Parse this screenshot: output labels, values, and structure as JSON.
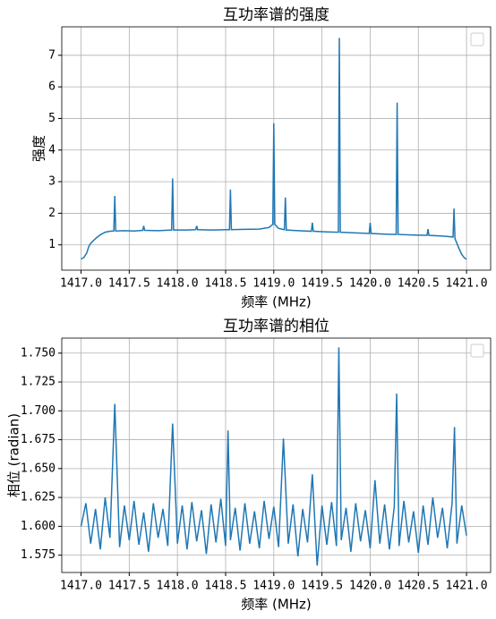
{
  "chart_data": [
    {
      "type": "line",
      "title": "互功率谱的强度",
      "xlabel": "频率 (MHz)",
      "ylabel": "强度",
      "x": [
        1417.0,
        1417.03,
        1417.06,
        1417.08,
        1417.1,
        1417.15,
        1417.2,
        1417.25,
        1417.3,
        1417.34,
        1417.35,
        1417.36,
        1417.45,
        1417.55,
        1417.64,
        1417.65,
        1417.66,
        1417.8,
        1417.94,
        1417.95,
        1417.96,
        1418.1,
        1418.19,
        1418.2,
        1418.21,
        1418.35,
        1418.54,
        1418.55,
        1418.56,
        1418.7,
        1418.85,
        1418.95,
        1418.99,
        1419.0,
        1419.01,
        1419.05,
        1419.11,
        1419.12,
        1419.13,
        1419.25,
        1419.39,
        1419.4,
        1419.41,
        1419.55,
        1419.67,
        1419.68,
        1419.69,
        1419.85,
        1419.99,
        1420.0,
        1420.01,
        1420.15,
        1420.27,
        1420.28,
        1420.29,
        1420.45,
        1420.59,
        1420.6,
        1420.61,
        1420.75,
        1420.86,
        1420.87,
        1420.88,
        1420.92,
        1420.95,
        1420.98,
        1421.0
      ],
      "series": [
        {
          "color": "#1f77b4",
          "values": [
            0.55,
            0.6,
            0.75,
            0.95,
            1.05,
            1.2,
            1.32,
            1.4,
            1.43,
            1.44,
            2.55,
            1.44,
            1.45,
            1.44,
            1.46,
            1.6,
            1.46,
            1.45,
            1.47,
            3.1,
            1.47,
            1.47,
            1.48,
            1.6,
            1.48,
            1.47,
            1.48,
            2.75,
            1.48,
            1.49,
            1.5,
            1.55,
            1.65,
            4.85,
            1.65,
            1.52,
            1.48,
            2.5,
            1.47,
            1.45,
            1.43,
            1.7,
            1.43,
            1.41,
            1.4,
            7.55,
            1.4,
            1.38,
            1.36,
            1.7,
            1.36,
            1.34,
            1.33,
            5.5,
            1.33,
            1.31,
            1.3,
            1.5,
            1.3,
            1.28,
            1.25,
            2.15,
            1.2,
            0.9,
            0.7,
            0.58,
            0.55
          ]
        }
      ],
      "xlim": [
        1416.8,
        1421.25
      ],
      "xticks": [
        {
          "value": 1417,
          "label": "1417.0"
        },
        {
          "value": 1417.5,
          "label": "1417.5"
        },
        {
          "value": 1418,
          "label": "1418.0"
        },
        {
          "value": 1418.5,
          "label": "1418.5"
        },
        {
          "value": 1419,
          "label": "1419.0"
        },
        {
          "value": 1419.5,
          "label": "1419.5"
        },
        {
          "value": 1420,
          "label": "1420.0"
        },
        {
          "value": 1420.5,
          "label": "1420.5"
        },
        {
          "value": 1421,
          "label": "1421.0"
        }
      ],
      "ylim": [
        0.2,
        7.9
      ],
      "yticks": [
        1,
        2,
        3,
        4,
        5,
        6,
        7
      ],
      "grid": true,
      "legend": "upper right"
    },
    {
      "type": "line",
      "title": "互功率谱的相位",
      "xlabel": "频率 (MHz)",
      "ylabel": "相位 (radian)",
      "x": [
        1417.0,
        1417.05,
        1417.1,
        1417.15,
        1417.2,
        1417.25,
        1417.3,
        1417.35,
        1417.4,
        1417.45,
        1417.5,
        1417.55,
        1417.6,
        1417.65,
        1417.7,
        1417.75,
        1417.8,
        1417.85,
        1417.9,
        1417.95,
        1418.0,
        1418.05,
        1418.1,
        1418.15,
        1418.2,
        1418.25,
        1418.3,
        1418.35,
        1418.4,
        1418.45,
        1418.5,
        1418.525,
        1418.55,
        1418.6,
        1418.65,
        1418.7,
        1418.75,
        1418.8,
        1418.85,
        1418.9,
        1418.95,
        1419.0,
        1419.05,
        1419.1,
        1419.15,
        1419.2,
        1419.25,
        1419.3,
        1419.35,
        1419.4,
        1419.45,
        1419.5,
        1419.55,
        1419.6,
        1419.65,
        1419.675,
        1419.7,
        1419.75,
        1419.8,
        1419.85,
        1419.9,
        1419.95,
        1420.0,
        1420.05,
        1420.1,
        1420.15,
        1420.2,
        1420.25,
        1420.275,
        1420.3,
        1420.35,
        1420.4,
        1420.45,
        1420.5,
        1420.55,
        1420.6,
        1420.65,
        1420.7,
        1420.75,
        1420.8,
        1420.85,
        1420.875,
        1420.9,
        1420.95,
        1421.0
      ],
      "series": [
        {
          "color": "#1f77b4",
          "values": [
            1.6,
            1.62,
            1.585,
            1.615,
            1.58,
            1.625,
            1.59,
            1.706,
            1.582,
            1.618,
            1.588,
            1.622,
            1.584,
            1.612,
            1.578,
            1.62,
            1.59,
            1.615,
            1.583,
            1.689,
            1.585,
            1.618,
            1.58,
            1.621,
            1.587,
            1.614,
            1.576,
            1.619,
            1.586,
            1.624,
            1.583,
            1.683,
            1.588,
            1.616,
            1.579,
            1.62,
            1.585,
            1.613,
            1.581,
            1.622,
            1.589,
            1.617,
            1.582,
            1.676,
            1.585,
            1.619,
            1.574,
            1.615,
            1.586,
            1.645,
            1.566,
            1.618,
            1.584,
            1.621,
            1.583,
            1.755,
            1.588,
            1.616,
            1.578,
            1.62,
            1.587,
            1.614,
            1.581,
            1.64,
            1.585,
            1.619,
            1.58,
            1.617,
            1.715,
            1.583,
            1.622,
            1.586,
            1.613,
            1.577,
            1.618,
            1.584,
            1.625,
            1.59,
            1.616,
            1.581,
            1.62,
            1.686,
            1.585,
            1.618,
            1.592
          ]
        }
      ],
      "xlim": [
        1416.8,
        1421.25
      ],
      "xticks": [
        {
          "value": 1417,
          "label": "1417.0"
        },
        {
          "value": 1417.5,
          "label": "1417.5"
        },
        {
          "value": 1418,
          "label": "1418.0"
        },
        {
          "value": 1418.5,
          "label": "1418.5"
        },
        {
          "value": 1419,
          "label": "1419.0"
        },
        {
          "value": 1419.5,
          "label": "1419.5"
        },
        {
          "value": 1420,
          "label": "1420.0"
        },
        {
          "value": 1420.5,
          "label": "1420.5"
        },
        {
          "value": 1421,
          "label": "1421.0"
        }
      ],
      "ylim": [
        1.56,
        1.763
      ],
      "yticks": [
        {
          "value": 1.575,
          "label": "1.575"
        },
        {
          "value": 1.6,
          "label": "1.600"
        },
        {
          "value": 1.625,
          "label": "1.625"
        },
        {
          "value": 1.65,
          "label": "1.650"
        },
        {
          "value": 1.675,
          "label": "1.675"
        },
        {
          "value": 1.7,
          "label": "1.700"
        },
        {
          "value": 1.725,
          "label": "1.725"
        },
        {
          "value": 1.75,
          "label": "1.750"
        }
      ],
      "grid": true,
      "legend": "upper right"
    }
  ]
}
